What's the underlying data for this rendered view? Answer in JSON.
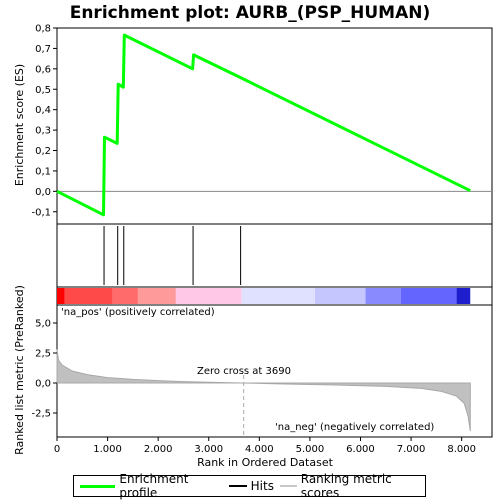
{
  "chart_data": {
    "type": "line",
    "title": "Enrichment plot: AURB_(PSP_HUMAN)",
    "xlabel": "Rank in Ordered Dataset",
    "es_ylabel": "Enrichment score (ES)",
    "metric_ylabel": "Ranked list metric (PreRanked)",
    "xlim": [
      0,
      8600
    ],
    "es_ylim": [
      -0.16,
      0.8
    ],
    "metric_ylim": [
      -4.5,
      6.5
    ],
    "x_ticks": [
      0,
      1000,
      2000,
      3000,
      4000,
      5000,
      6000,
      7000,
      8000
    ],
    "x_tick_labels": [
      "0",
      "1.000",
      "2.000",
      "3.000",
      "4.000",
      "5.000",
      "6.000",
      "7.000",
      "8.000"
    ],
    "es_ticks": [
      -0.1,
      0.0,
      0.1,
      0.2,
      0.3,
      0.4,
      0.5,
      0.6,
      0.7,
      0.8
    ],
    "es_tick_labels": [
      "-0,1",
      "0,0",
      "0,1",
      "0,2",
      "0,3",
      "0,4",
      "0,5",
      "0,6",
      "0,7",
      "0,8"
    ],
    "metric_ticks": [
      -2.5,
      0.0,
      2.5,
      5.0
    ],
    "metric_tick_labels": [
      "-2,5",
      "0,0",
      "2,5",
      "5,0"
    ],
    "series": [
      {
        "name": "Enrichment profile",
        "color": "#00ff00",
        "x": [
          0,
          920,
          940,
          1190,
          1210,
          1310,
          1330,
          2680,
          2700,
          3620,
          8170
        ],
        "y": [
          0.0,
          -0.115,
          0.265,
          0.235,
          0.525,
          0.51,
          0.765,
          0.6,
          0.668,
          0.558,
          0.003
        ]
      }
    ],
    "hits": [
      930,
      1200,
      1320,
      2690,
      3630
    ],
    "metric_profile": {
      "x": [
        0,
        30,
        100,
        300,
        600,
        1000,
        1500,
        2000,
        2500,
        3000,
        3690,
        4500,
        5500,
        6500,
        7200,
        7600,
        7900,
        8050,
        8130,
        8170
      ],
      "y": [
        2.8,
        1.9,
        1.5,
        1.0,
        0.7,
        0.45,
        0.3,
        0.2,
        0.12,
        0.06,
        0.0,
        -0.08,
        -0.17,
        -0.28,
        -0.45,
        -0.7,
        -1.1,
        -1.7,
        -2.8,
        -4.0
      ]
    },
    "zero_cross_rank": 3690,
    "zero_cross_label": "Zero cross at 3690",
    "pos_label": "'na_pos' (positively correlated)",
    "neg_label": "'na_neg' (negatively correlated)",
    "pos_label_color": "#ff0000",
    "neg_label_color": "#0000ff",
    "gradient_bands": [
      {
        "x0": 0,
        "x1": 150,
        "color": "#ff0000"
      },
      {
        "x0": 150,
        "x1": 1100,
        "color": "#ff4a4a"
      },
      {
        "x0": 1100,
        "x1": 1600,
        "color": "#ff6a6a"
      },
      {
        "x0": 1600,
        "x1": 2350,
        "color": "#ff9a9a"
      },
      {
        "x0": 2350,
        "x1": 3650,
        "color": "#ffc8e6"
      },
      {
        "x0": 3650,
        "x1": 5100,
        "color": "#e0e0ff"
      },
      {
        "x0": 5100,
        "x1": 6100,
        "color": "#c6c6ff"
      },
      {
        "x0": 6100,
        "x1": 6800,
        "color": "#8a8aff"
      },
      {
        "x0": 6800,
        "x1": 7900,
        "color": "#6464ff"
      },
      {
        "x0": 7900,
        "x1": 8170,
        "color": "#1e1ecc"
      }
    ]
  },
  "legend": {
    "items": [
      {
        "label": "Enrichment profile",
        "swatch": "green"
      },
      {
        "label": "Hits",
        "swatch": "black"
      },
      {
        "label": "Ranking metric scores",
        "swatch": "gray"
      }
    ]
  }
}
